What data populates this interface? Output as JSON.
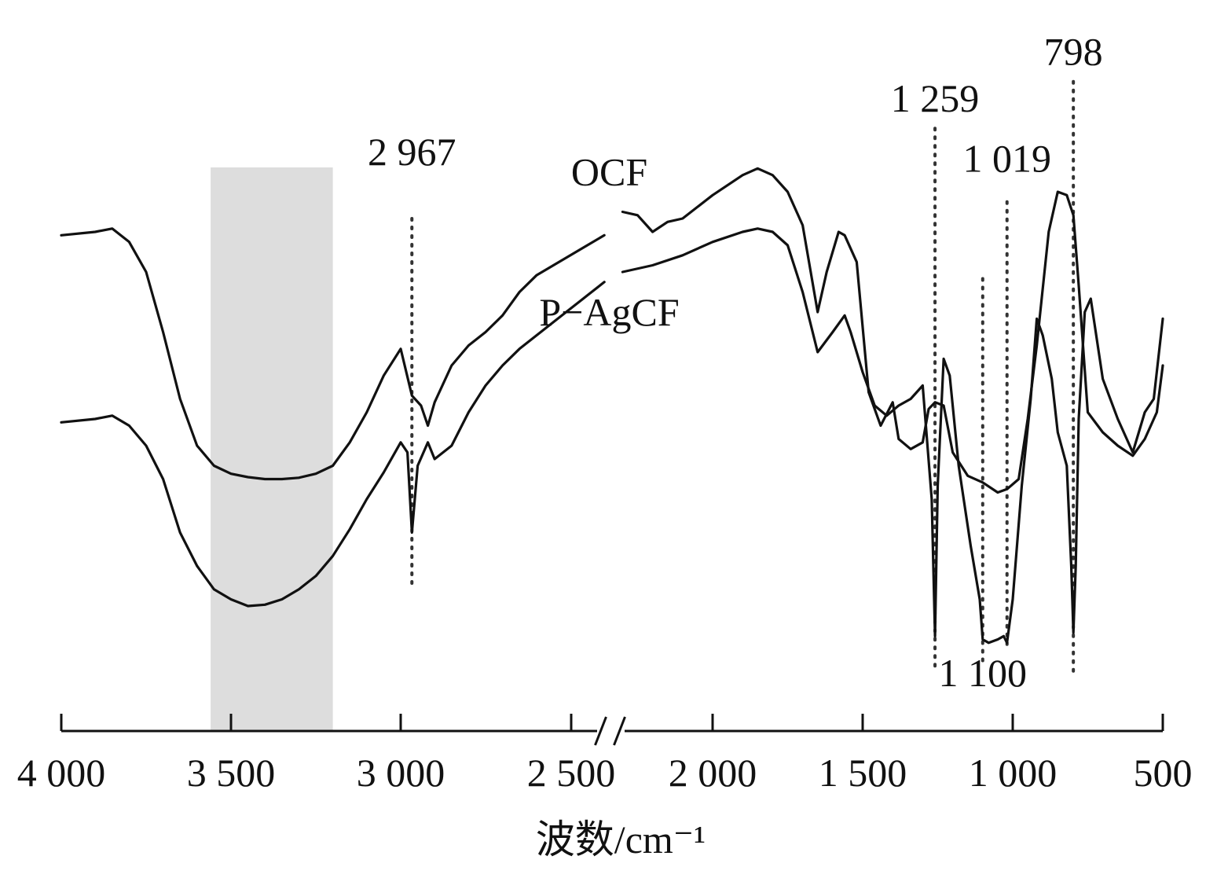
{
  "chart_data": {
    "type": "line",
    "title": "",
    "xlabel": "波数/cm⁻¹",
    "ylabel": "",
    "x_axis": {
      "reversed": true,
      "broken_between": [
        2400,
        2300
      ],
      "segment_left": [
        4000,
        2400
      ],
      "segment_right": [
        2300,
        500
      ],
      "ticks": [
        4000,
        3500,
        3000,
        2500,
        2000,
        1500,
        1000,
        500
      ],
      "tick_labels": [
        "4 000",
        "3 500",
        "3 000",
        "2 500",
        "2 000",
        "1 500",
        "1 000",
        "500"
      ]
    },
    "y_axis": {
      "visible": false,
      "unit": "transmittance (arbitrary)"
    },
    "grid": false,
    "shaded_band": {
      "x_range": [
        3560,
        3200
      ],
      "color": "#dddddd"
    },
    "series": [
      {
        "name": "OCF",
        "color": "#111111",
        "points": [
          [
            4000,
            0.695
          ],
          [
            3900,
            0.7
          ],
          [
            3850,
            0.705
          ],
          [
            3800,
            0.685
          ],
          [
            3750,
            0.64
          ],
          [
            3700,
            0.55
          ],
          [
            3650,
            0.45
          ],
          [
            3600,
            0.38
          ],
          [
            3550,
            0.35
          ],
          [
            3500,
            0.338
          ],
          [
            3450,
            0.333
          ],
          [
            3400,
            0.33
          ],
          [
            3350,
            0.33
          ],
          [
            3300,
            0.332
          ],
          [
            3250,
            0.338
          ],
          [
            3200,
            0.35
          ],
          [
            3150,
            0.385
          ],
          [
            3100,
            0.43
          ],
          [
            3050,
            0.485
          ],
          [
            3000,
            0.525
          ],
          [
            2967,
            0.455
          ],
          [
            2940,
            0.44
          ],
          [
            2920,
            0.41
          ],
          [
            2900,
            0.445
          ],
          [
            2850,
            0.5
          ],
          [
            2800,
            0.53
          ],
          [
            2750,
            0.55
          ],
          [
            2700,
            0.575
          ],
          [
            2650,
            0.61
          ],
          [
            2600,
            0.635
          ],
          [
            2550,
            0.65
          ],
          [
            2500,
            0.665
          ],
          [
            2450,
            0.68
          ],
          [
            2400,
            0.695
          ],
          [
            2300,
            0.73
          ],
          [
            2250,
            0.725
          ],
          [
            2200,
            0.7
          ],
          [
            2150,
            0.715
          ],
          [
            2100,
            0.72
          ],
          [
            2000,
            0.755
          ],
          [
            1900,
            0.785
          ],
          [
            1850,
            0.795
          ],
          [
            1800,
            0.785
          ],
          [
            1750,
            0.76
          ],
          [
            1700,
            0.71
          ],
          [
            1650,
            0.58
          ],
          [
            1620,
            0.64
          ],
          [
            1580,
            0.7
          ],
          [
            1560,
            0.695
          ],
          [
            1520,
            0.655
          ],
          [
            1480,
            0.46
          ],
          [
            1440,
            0.41
          ],
          [
            1400,
            0.445
          ],
          [
            1380,
            0.39
          ],
          [
            1340,
            0.375
          ],
          [
            1300,
            0.385
          ],
          [
            1280,
            0.435
          ],
          [
            1259,
            0.445
          ],
          [
            1230,
            0.44
          ],
          [
            1200,
            0.37
          ],
          [
            1150,
            0.335
          ],
          [
            1100,
            0.325
          ],
          [
            1050,
            0.31
          ],
          [
            1019,
            0.315
          ],
          [
            980,
            0.33
          ],
          [
            950,
            0.42
          ],
          [
            920,
            0.53
          ],
          [
            880,
            0.7
          ],
          [
            850,
            0.76
          ],
          [
            820,
            0.755
          ],
          [
            798,
            0.725
          ],
          [
            780,
            0.62
          ],
          [
            750,
            0.43
          ],
          [
            700,
            0.4
          ],
          [
            650,
            0.38
          ],
          [
            600,
            0.365
          ],
          [
            560,
            0.39
          ],
          [
            520,
            0.43
          ],
          [
            500,
            0.5
          ]
        ]
      },
      {
        "name": "P−AgCF",
        "color": "#111111",
        "points": [
          [
            4000,
            0.415
          ],
          [
            3900,
            0.42
          ],
          [
            3850,
            0.425
          ],
          [
            3800,
            0.41
          ],
          [
            3750,
            0.38
          ],
          [
            3700,
            0.33
          ],
          [
            3650,
            0.25
          ],
          [
            3600,
            0.2
          ],
          [
            3550,
            0.165
          ],
          [
            3500,
            0.15
          ],
          [
            3450,
            0.14
          ],
          [
            3400,
            0.142
          ],
          [
            3350,
            0.15
          ],
          [
            3300,
            0.165
          ],
          [
            3250,
            0.185
          ],
          [
            3200,
            0.215
          ],
          [
            3150,
            0.255
          ],
          [
            3100,
            0.3
          ],
          [
            3050,
            0.34
          ],
          [
            3000,
            0.385
          ],
          [
            2980,
            0.37
          ],
          [
            2967,
            0.25
          ],
          [
            2950,
            0.35
          ],
          [
            2920,
            0.385
          ],
          [
            2900,
            0.36
          ],
          [
            2850,
            0.38
          ],
          [
            2800,
            0.43
          ],
          [
            2750,
            0.47
          ],
          [
            2700,
            0.5
          ],
          [
            2650,
            0.525
          ],
          [
            2600,
            0.545
          ],
          [
            2550,
            0.565
          ],
          [
            2500,
            0.585
          ],
          [
            2450,
            0.605
          ],
          [
            2400,
            0.625
          ],
          [
            2300,
            0.64
          ],
          [
            2200,
            0.65
          ],
          [
            2100,
            0.665
          ],
          [
            2000,
            0.685
          ],
          [
            1900,
            0.7
          ],
          [
            1850,
            0.705
          ],
          [
            1800,
            0.7
          ],
          [
            1750,
            0.68
          ],
          [
            1700,
            0.61
          ],
          [
            1650,
            0.52
          ],
          [
            1600,
            0.55
          ],
          [
            1560,
            0.575
          ],
          [
            1540,
            0.55
          ],
          [
            1500,
            0.49
          ],
          [
            1460,
            0.44
          ],
          [
            1420,
            0.425
          ],
          [
            1380,
            0.44
          ],
          [
            1340,
            0.45
          ],
          [
            1300,
            0.47
          ],
          [
            1270,
            0.3
          ],
          [
            1259,
            0.095
          ],
          [
            1250,
            0.32
          ],
          [
            1230,
            0.51
          ],
          [
            1210,
            0.485
          ],
          [
            1180,
            0.35
          ],
          [
            1140,
            0.23
          ],
          [
            1110,
            0.15
          ],
          [
            1100,
            0.09
          ],
          [
            1080,
            0.085
          ],
          [
            1050,
            0.09
          ],
          [
            1030,
            0.095
          ],
          [
            1019,
            0.085
          ],
          [
            1000,
            0.15
          ],
          [
            970,
            0.32
          ],
          [
            940,
            0.45
          ],
          [
            920,
            0.57
          ],
          [
            900,
            0.545
          ],
          [
            870,
            0.48
          ],
          [
            850,
            0.4
          ],
          [
            820,
            0.35
          ],
          [
            805,
            0.2
          ],
          [
            798,
            0.1
          ],
          [
            790,
            0.2
          ],
          [
            780,
            0.42
          ],
          [
            760,
            0.58
          ],
          [
            740,
            0.6
          ],
          [
            700,
            0.48
          ],
          [
            650,
            0.42
          ],
          [
            600,
            0.37
          ],
          [
            560,
            0.43
          ],
          [
            530,
            0.45
          ],
          [
            500,
            0.57
          ]
        ]
      }
    ],
    "annotations": [
      {
        "text": "2 967",
        "x": 2967,
        "line_y": [
          0.72,
          0.165
        ],
        "label_y": 0.8
      },
      {
        "text": "1 259",
        "x": 1259,
        "line_y": [
          0.855,
          0.05
        ],
        "label_y": 0.88
      },
      {
        "text": "1 019",
        "x": 1019,
        "line_y": [
          0.745,
          0.08
        ],
        "label_y": 0.79
      },
      {
        "text": "798",
        "x": 798,
        "line_y": [
          0.925,
          0.04
        ],
        "label_y": 0.95
      },
      {
        "text": "1 100",
        "x": 1100,
        "line_y": [
          0.63,
          0.055
        ],
        "label_y": 0.02
      }
    ],
    "series_labels": [
      {
        "text": "OCF",
        "x": 2420,
        "y": 0.77
      },
      {
        "text": "P−AgCF",
        "x": 2420,
        "y": 0.56
      }
    ]
  }
}
